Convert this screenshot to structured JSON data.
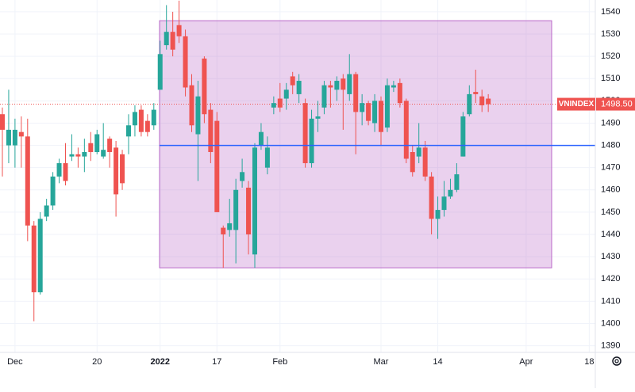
{
  "chart_data": {
    "type": "candlestick",
    "symbol": "VNINDEX",
    "last_price": {
      "value": 1498.5,
      "label": "1498.50"
    },
    "hline": 1480,
    "highlight_box": {
      "top": 1536,
      "bottom": 1425
    },
    "up_color": "#26a69a",
    "down_color": "#ef5350",
    "grid": true,
    "categories": [
      null,
      null,
      "Dec",
      null,
      null,
      null,
      null,
      null,
      null,
      null,
      null,
      null,
      null,
      null,
      null,
      "20",
      null,
      null,
      null,
      null,
      null,
      null,
      null,
      null,
      null,
      "2022",
      null,
      null,
      null,
      null,
      null,
      null,
      null,
      null,
      "17",
      null,
      null,
      null,
      null,
      null,
      null,
      null,
      null,
      null,
      "Feb",
      null,
      null,
      null,
      null,
      null,
      null,
      null,
      null,
      null,
      null,
      null,
      null,
      null,
      null,
      null,
      "Mar",
      null,
      null,
      null,
      null,
      null,
      null,
      null,
      null,
      "14",
      null,
      null,
      null,
      null,
      null,
      null,
      null,
      null,
      null,
      null,
      null,
      null,
      null,
      "Apr",
      null,
      null,
      null,
      null,
      null,
      null,
      null,
      null,
      null,
      "18"
    ],
    "open": [
      1494,
      1480,
      1480,
      1486,
      1484,
      1444,
      1414,
      1448,
      1453,
      1466,
      1472,
      1475,
      1476,
      1475,
      1481,
      1477,
      1475,
      1483,
      1479,
      1476,
      1484,
      1489,
      1496,
      1491,
      1489,
      1505,
      1525,
      1531,
      1534,
      1529,
      1507,
      1485,
      1519,
      1496,
      1491,
      1443,
      1442,
      1442,
      1464,
      1461,
      1431,
      1480,
      1470,
      1497,
      1501,
      1501,
      1511,
      1503,
      1499,
      1472,
      1492,
      1497,
      1507,
      1505,
      1510,
      1503,
      1512,
      1495,
      1499,
      1490,
      1500,
      1488,
      1506,
      1508,
      1500,
      1477,
      1475,
      1479,
      1466,
      1447,
      1451,
      1457,
      1460,
      1475,
      1494,
      1504,
      1502,
      1501,
      null,
      null,
      null,
      null,
      null,
      null,
      null,
      null,
      null,
      null,
      null,
      null,
      null,
      null,
      null,
      null
    ],
    "high": [
      1497,
      1505,
      1492,
      1493,
      1492,
      1446,
      1450,
      1456,
      1468,
      1474,
      1481,
      1485,
      1479,
      1483,
      1486,
      1487,
      1490,
      1484,
      1482,
      1478,
      1494,
      1498,
      1498,
      1494,
      1499,
      1527,
      1543,
      1540,
      1545,
      1532,
      1512,
      1509,
      1520,
      1499,
      1495,
      1444,
      1456,
      1465,
      1474,
      1464,
      1481,
      1490,
      1484,
      1502,
      1508,
      1508,
      1513,
      1512,
      1501,
      1496,
      1500,
      1509,
      1509,
      1511,
      1512,
      1521,
      1513,
      1503,
      1500,
      1503,
      1502,
      1510,
      1509,
      1510,
      1501,
      1480,
      1490,
      1482,
      1468,
      1457,
      1464,
      1465,
      1472,
      1495,
      1507,
      1514,
      1505,
      1503,
      null,
      null,
      null,
      null,
      null,
      null,
      null,
      null,
      null,
      null,
      null,
      null,
      null,
      null,
      null,
      null
    ],
    "low": [
      1466,
      1472,
      1470,
      1470,
      1437,
      1401,
      1413,
      1446,
      1451,
      1463,
      1462,
      1473,
      1470,
      1468,
      1473,
      1476,
      1474,
      1470,
      1448,
      1460,
      1476,
      1484,
      1484,
      1484,
      1487,
      1505,
      1523,
      1520,
      1526,
      1502,
      1486,
      1464,
      1490,
      1472,
      1450,
      1425,
      1439,
      1427,
      1461,
      1431,
      1425,
      1478,
      1467,
      1494,
      1495,
      1496,
      1503,
      1499,
      1470,
      1470,
      1486,
      1494,
      1497,
      1500,
      1487,
      1500,
      1476,
      1489,
      1489,
      1486,
      1480,
      1486,
      1504,
      1497,
      1472,
      1466,
      1472,
      1464,
      1440,
      1438,
      1448,
      1456,
      1459,
      1475,
      1493,
      1499,
      1495,
      1495,
      null,
      null,
      null,
      null,
      null,
      null,
      null,
      null,
      null,
      null,
      null,
      null,
      null,
      null,
      null,
      null
    ],
    "close": [
      1487,
      1487,
      1487,
      1484,
      1444,
      1414,
      1447,
      1453,
      1466,
      1472,
      1464,
      1476,
      1475,
      1477,
      1477,
      1485,
      1478,
      1477,
      1458,
      1463,
      1489,
      1495,
      1486,
      1486,
      1496,
      1521,
      1531,
      1523,
      1529,
      1506,
      1489,
      1502,
      1494,
      1477,
      1450,
      1440,
      1445,
      1460,
      1468,
      1440,
      1479,
      1486,
      1479,
      1499,
      1497,
      1505,
      1507,
      1509,
      1472,
      1492,
      1493,
      1507,
      1506,
      1509,
      1505,
      1512,
      1495,
      1499,
      1491,
      1500,
      1486,
      1507,
      1507,
      1499,
      1474,
      1468,
      1479,
      1466,
      1447,
      1451,
      1457,
      1460,
      1467,
      1493,
      1503,
      1503,
      1498,
      1498.5,
      null,
      null,
      null,
      null,
      null,
      null,
      null,
      null,
      null,
      null,
      null,
      null,
      null,
      null,
      null,
      null
    ],
    "ylim": [
      1387,
      1545.3
    ],
    "yticks": [
      1390,
      1400,
      1410,
      1420,
      1430,
      1440,
      1450,
      1460,
      1470,
      1480,
      1490,
      1500,
      1510,
      1520,
      1530,
      1540
    ]
  }
}
